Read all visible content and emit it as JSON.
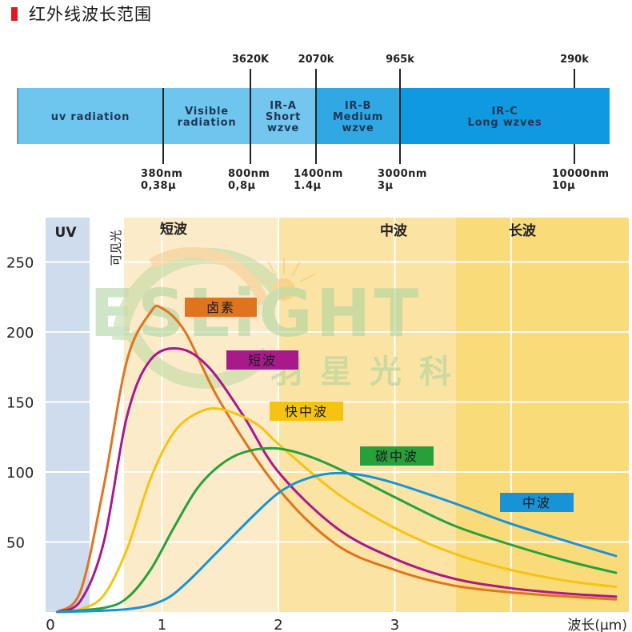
{
  "header": {
    "title": "红外线波长范围",
    "marker_color": "#e0191e"
  },
  "spectrum_bar": {
    "segments": [
      {
        "label_lines": [
          "uv radiation"
        ],
        "color": "#6ec6ef"
      },
      {
        "label_lines": [
          "Visible",
          "radiation"
        ],
        "color": "#6ec6ef"
      },
      {
        "label_lines": [
          "IR-A",
          "Short",
          "wzve"
        ],
        "color": "#74c6ee"
      },
      {
        "label_lines": [
          "IR-B",
          "Medium",
          "wzve"
        ],
        "color": "#2fa8e3"
      },
      {
        "label_lines": [
          "IR-C",
          "Long wzves"
        ],
        "color": "#0f9ae0"
      }
    ],
    "top_ticks": [
      "3620K",
      "2070k",
      "965k",
      "290k"
    ],
    "bottom_ticks": [
      {
        "nm": "380nm",
        "um": "0,38μ"
      },
      {
        "nm": "800nm",
        "um": "0,8μ"
      },
      {
        "nm": "1400nm",
        "um": "1.4μ"
      },
      {
        "nm": "3000nm",
        "um": "3μ"
      },
      {
        "nm": "10000nm",
        "um": "10μ"
      }
    ]
  },
  "chart_data": {
    "type": "line",
    "title": "",
    "xlabel": "波长(μm)",
    "ylabel": "",
    "xlim": [
      0,
      4.9
    ],
    "ylim": [
      0,
      280
    ],
    "x_ticks": [
      "0",
      "1",
      "2",
      "3"
    ],
    "y_ticks": [
      "50",
      "100",
      "150",
      "200",
      "250"
    ],
    "grid": true,
    "regions": [
      {
        "label": "UV",
        "x_range": [
          0,
          0.38
        ],
        "color": "#cfdcee"
      },
      {
        "label": "可见光",
        "x_range": [
          0.38,
          0.65
        ],
        "color": "#ffffff"
      },
      {
        "label": "短波",
        "x_range": [
          0.65,
          2.0
        ],
        "color": "#fcebc9"
      },
      {
        "label": "中波",
        "x_range": [
          2.0,
          3.5
        ],
        "color": "#fbe3a4"
      },
      {
        "label": "长波",
        "x_range": [
          3.5,
          4.9
        ],
        "color": "#fadb7a"
      }
    ],
    "series": [
      {
        "name": "卤素",
        "color": "#e0741e",
        "peak_x": 1.0,
        "peak_y": 217,
        "x": [
          0.1,
          0.3,
          0.5,
          0.7,
          0.9,
          1.0,
          1.2,
          1.5,
          2.0,
          2.5,
          3.0,
          3.5,
          4.0,
          4.5,
          4.9
        ],
        "values": [
          0,
          15,
          90,
          180,
          214,
          217,
          200,
          150,
          88,
          48,
          30,
          19,
          14,
          11,
          9
        ]
      },
      {
        "name": "短波",
        "color": "#a8198c",
        "peak_x": 1.15,
        "peak_y": 188,
        "x": [
          0.1,
          0.3,
          0.5,
          0.7,
          0.9,
          1.15,
          1.4,
          1.7,
          2.0,
          2.5,
          3.0,
          3.5,
          4.0,
          4.5,
          4.9
        ],
        "values": [
          0,
          8,
          50,
          140,
          180,
          188,
          175,
          140,
          100,
          60,
          38,
          24,
          17,
          13,
          11
        ]
      },
      {
        "name": "快中波",
        "color": "#f7c313",
        "peak_x": 1.5,
        "peak_y": 145,
        "x": [
          0.1,
          0.3,
          0.5,
          0.7,
          0.9,
          1.1,
          1.3,
          1.5,
          1.8,
          2.0,
          2.5,
          3.0,
          3.5,
          4.0,
          4.5,
          4.9
        ],
        "values": [
          0,
          2,
          12,
          45,
          95,
          128,
          142,
          145,
          135,
          120,
          85,
          60,
          42,
          30,
          22,
          18
        ]
      },
      {
        "name": "碳中波",
        "color": "#27a03c",
        "peak_x": 1.95,
        "peak_y": 117,
        "x": [
          0.1,
          0.5,
          0.7,
          0.9,
          1.1,
          1.3,
          1.5,
          1.7,
          1.95,
          2.2,
          2.5,
          3.0,
          3.5,
          4.0,
          4.5,
          4.9
        ],
        "values": [
          0,
          3,
          10,
          30,
          60,
          88,
          105,
          114,
          117,
          113,
          103,
          82,
          62,
          48,
          36,
          28
        ]
      },
      {
        "name": "中波",
        "color": "#1894d6",
        "peak_x": 2.45,
        "peak_y": 99,
        "x": [
          0.1,
          0.7,
          1.0,
          1.2,
          1.5,
          1.8,
          2.0,
          2.2,
          2.45,
          2.7,
          3.0,
          3.5,
          4.0,
          4.5,
          4.9
        ],
        "values": [
          0,
          2,
          8,
          20,
          45,
          70,
          85,
          94,
          99,
          98,
          92,
          78,
          63,
          50,
          40
        ]
      }
    ]
  },
  "watermark": {
    "brand": "ESLiGHT",
    "brand_cn": "羽星光科"
  }
}
